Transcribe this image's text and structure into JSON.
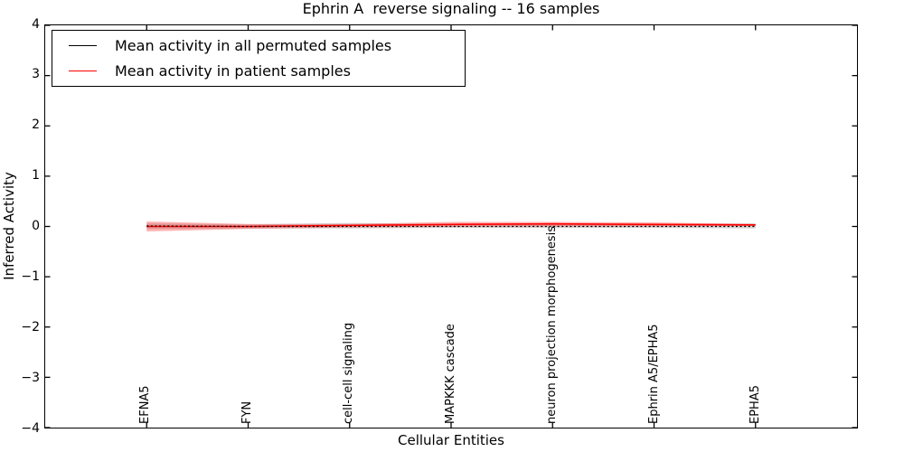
{
  "title": "Ephrin A  reverse signaling -- 16 samples",
  "axes": {
    "xlabel": "Cellular Entities",
    "ylabel": "Inferred Activity"
  },
  "legend": {
    "items": [
      {
        "label": "Mean activity in all permuted samples",
        "color": "#000000"
      },
      {
        "label": "Mean activity in patient samples",
        "color": "#ff0000"
      }
    ]
  },
  "chart_data": {
    "type": "line",
    "title": "Ephrin A  reverse signaling -- 16 samples",
    "xlabel": "Cellular Entities",
    "ylabel": "Inferred Activity",
    "categories": [
      "EFNA5",
      "FYN",
      "cell-cell signaling",
      "MAPKKK cascade",
      "neuron projection morphogenesis",
      "Ephrin A5/EPHA5",
      "EPHA5"
    ],
    "xlim": [
      -1,
      7
    ],
    "ylim": [
      -4,
      4
    ],
    "yticks": [
      4,
      3,
      2,
      1,
      0,
      -1,
      -2,
      -3,
      -4
    ],
    "ytick_labels": [
      "4",
      "3",
      "2",
      "1",
      "0",
      "−1",
      "−2",
      "−3",
      "−4"
    ],
    "grid": false,
    "legend_position": "upper left",
    "series": [
      {
        "name": "Mean activity in all permuted samples",
        "color": "#000000",
        "line_style": "dotted",
        "values": [
          0.01,
          0.0,
          0.0,
          0.0,
          0.0,
          0.0,
          0.0
        ],
        "band_upper": [
          0.06,
          0.04,
          0.07,
          0.05,
          0.04,
          0.04,
          0.06
        ],
        "band_lower": [
          -0.05,
          -0.04,
          -0.04,
          -0.03,
          -0.03,
          -0.03,
          -0.04
        ],
        "band_color": "rgba(0,0,0,0.16)"
      },
      {
        "name": "Mean activity in patient samples",
        "color": "#ff0000",
        "line_style": "solid",
        "values": [
          0.0,
          0.0,
          0.02,
          0.04,
          0.05,
          0.04,
          0.03
        ],
        "band_upper": [
          0.1,
          0.05,
          0.05,
          0.09,
          0.09,
          0.08,
          0.05
        ],
        "band_lower": [
          -0.1,
          -0.05,
          -0.02,
          -0.01,
          0.0,
          0.0,
          0.01
        ],
        "band_color": "rgba(255,0,0,0.30)"
      }
    ]
  }
}
